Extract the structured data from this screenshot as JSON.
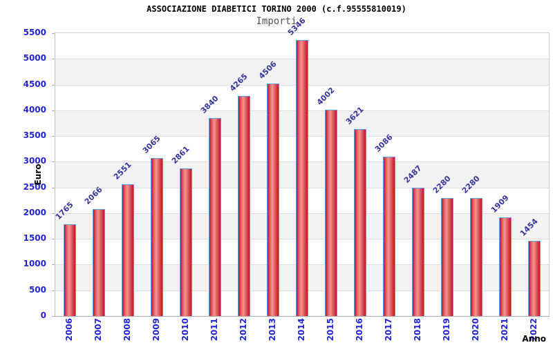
{
  "header": {
    "title": "ASSOCIAZIONE DIABETICI TORINO 2000 (c.f.95555810019)",
    "subtitle": "Importi"
  },
  "chart_data": {
    "type": "bar",
    "title": "ASSOCIAZIONE DIABETICI TORINO 2000 (c.f.95555810019)",
    "subtitle": "Importi",
    "xlabel": "Anno",
    "ylabel": "Euro",
    "categories": [
      "2006",
      "2007",
      "2008",
      "2009",
      "2010",
      "2011",
      "2012",
      "2013",
      "2014",
      "2015",
      "2016",
      "2017",
      "2018",
      "2019",
      "2020",
      "2021",
      "2022"
    ],
    "values": [
      1765,
      2066,
      2551,
      3065,
      2861,
      3840,
      4265,
      4506,
      5346,
      4002,
      3621,
      3086,
      2487,
      2280,
      2280,
      1909,
      1454
    ],
    "ylim": [
      0,
      5500
    ],
    "ytick_step": 500,
    "yticks": [
      0,
      500,
      1000,
      1500,
      2000,
      2500,
      3000,
      3500,
      4000,
      4500,
      5000,
      5500
    ],
    "grid": "horizontal",
    "legend": "none",
    "colors": {
      "bar_edge": "#c1122d",
      "bar_mid": "#e86a6a",
      "bar_highlight": "#f09494",
      "bar_outline": "#58a6e6",
      "axis_tick_label": "#2424d0",
      "value_label": "#343499",
      "band": "#f2f2f2",
      "gridline": "#dcdcdc",
      "subtitle_color": "#555555"
    }
  }
}
